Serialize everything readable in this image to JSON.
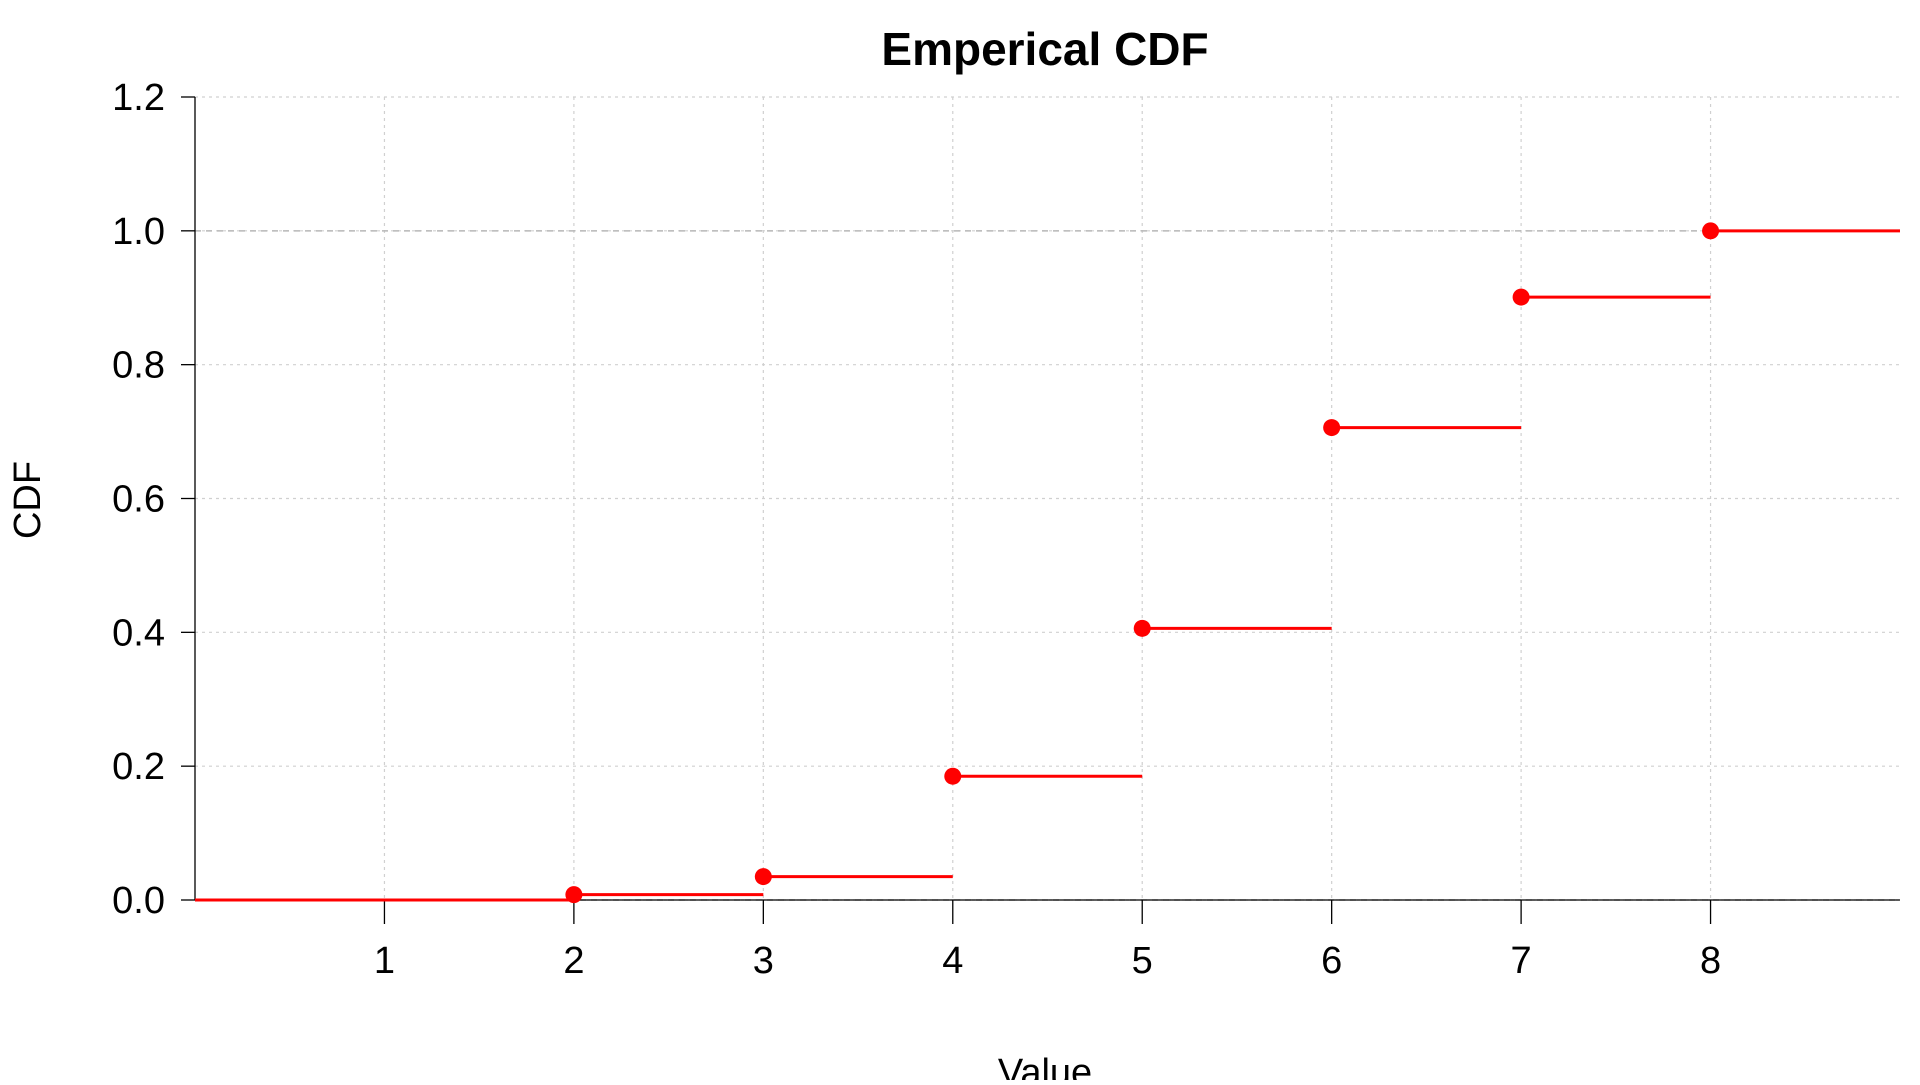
{
  "chart_data": {
    "type": "line",
    "subtype": "step",
    "title": "Emperical CDF",
    "xlabel": "Value",
    "ylabel": "CDF",
    "xlim": [
      0,
      9
    ],
    "ylim": [
      0,
      1.2
    ],
    "x_ticks": [
      "1",
      "2",
      "3",
      "4",
      "5",
      "6",
      "7",
      "8"
    ],
    "y_ticks": [
      "0.0",
      "0.2",
      "0.4",
      "0.6",
      "0.8",
      "1.0",
      "1.2"
    ],
    "grid": true,
    "reference_lines_y": [
      0,
      1
    ],
    "colors": {
      "series": "#ff0000",
      "grid": "#d0d0d0",
      "axis": "#000000"
    },
    "series": [
      {
        "x": [
          2,
          3,
          4,
          5,
          6,
          7,
          8
        ],
        "y": [
          0.008,
          0.035,
          0.185,
          0.406,
          0.706,
          0.901,
          1.0
        ]
      }
    ]
  }
}
